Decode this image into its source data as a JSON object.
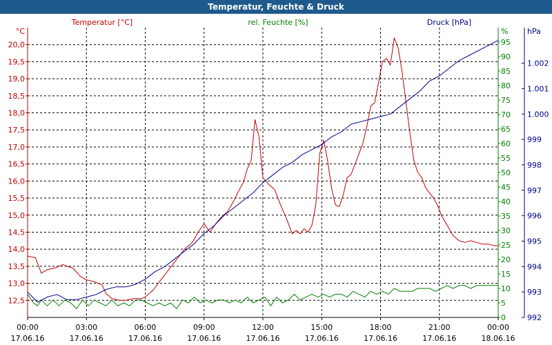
{
  "window": {
    "title": "Temperatur, Feuchte & Druck"
  },
  "colors": {
    "temperature": "#c00000",
    "humidity": "#008000",
    "pressure": "#00008b",
    "grid": "#000000",
    "background": "#ffffff",
    "title_bar": "#1e5a8c"
  },
  "chart_data": {
    "type": "line",
    "title": "Temperatur, Feuchte & Druck",
    "x_labels": [
      {
        "time": "00:00",
        "date": "17.06.16"
      },
      {
        "time": "03:00",
        "date": "17.06.16"
      },
      {
        "time": "06:00",
        "date": "17.06.16"
      },
      {
        "time": "09:00",
        "date": "17.06.16"
      },
      {
        "time": "12:00",
        "date": "17.06.16"
      },
      {
        "time": "15:00",
        "date": "17.06.16"
      },
      {
        "time": "18:00",
        "date": "17.06.16"
      },
      {
        "time": "21:00",
        "date": "17.06.16"
      },
      {
        "time": "00:00",
        "date": "18.06.16"
      }
    ],
    "xlim": [
      0,
      24
    ],
    "axes": {
      "temperature": {
        "label": "Temperatur [°C]",
        "unit": "°C",
        "ylim": [
          12.0,
          20.5
        ],
        "ticks": [
          "12,5",
          "13,0",
          "13,5",
          "14,0",
          "14,5",
          "15,0",
          "15,5",
          "16,0",
          "16,5",
          "17,0",
          "17,5",
          "18,0",
          "18,5",
          "19,0",
          "19,5",
          "20,0"
        ]
      },
      "humidity": {
        "label": "rel. Feuchte [%]",
        "unit": "%",
        "ylim": [
          0,
          100
        ],
        "ticks": [
          "0",
          "5",
          "10",
          "15",
          "20",
          "25",
          "30",
          "35",
          "40",
          "45",
          "50",
          "55",
          "60",
          "65",
          "70",
          "75",
          "80",
          "85",
          "90",
          "95"
        ]
      },
      "pressure": {
        "label": "Druck [hPa]",
        "unit": "hPa",
        "ylim": [
          992,
          1003.4
        ],
        "ticks": [
          "992",
          "993",
          "994",
          "995",
          "996",
          "997",
          "998",
          "999",
          "1.000",
          "1.001",
          "1.002"
        ]
      }
    },
    "series": [
      {
        "name": "Temperatur",
        "axis": "temperature",
        "color": "#c00000",
        "x": [
          0,
          0.4,
          0.7,
          1.0,
          1.4,
          1.8,
          2.0,
          2.3,
          2.7,
          3.0,
          3.4,
          3.8,
          4.0,
          4.3,
          4.7,
          5.0,
          5.4,
          5.8,
          6.0,
          6.4,
          6.8,
          7.2,
          7.6,
          8.0,
          8.4,
          8.7,
          9.0,
          9.3,
          9.6,
          9.9,
          10.2,
          10.5,
          10.8,
          11.0,
          11.2,
          11.4,
          11.6,
          11.8,
          12.0,
          12.3,
          12.6,
          12.9,
          13.2,
          13.5,
          13.7,
          13.9,
          14.1,
          14.3,
          14.5,
          14.7,
          14.9,
          15.1,
          15.3,
          15.5,
          15.7,
          15.9,
          16.1,
          16.3,
          16.5,
          16.7,
          16.9,
          17.1,
          17.3,
          17.5,
          17.7,
          17.9,
          18.1,
          18.3,
          18.5,
          18.7,
          18.9,
          19.1,
          19.3,
          19.5,
          19.7,
          19.9,
          20.1,
          20.3,
          20.5,
          20.7,
          20.9,
          21.1,
          21.3,
          21.5,
          21.7,
          22.0,
          22.3,
          22.6,
          22.9,
          23.2,
          23.5,
          23.8,
          24.0
        ],
        "values": [
          13.8,
          13.75,
          13.3,
          13.4,
          13.45,
          13.55,
          13.5,
          13.45,
          13.2,
          13.1,
          13.05,
          12.95,
          12.7,
          12.55,
          12.5,
          12.5,
          12.55,
          12.55,
          12.6,
          12.8,
          13.1,
          13.4,
          13.7,
          14.0,
          14.2,
          14.5,
          14.75,
          14.5,
          14.75,
          14.95,
          15.1,
          15.4,
          15.75,
          15.95,
          16.35,
          16.6,
          17.8,
          17.3,
          16.1,
          15.9,
          15.75,
          15.3,
          14.9,
          14.45,
          14.55,
          14.45,
          14.6,
          14.5,
          14.7,
          15.3,
          16.8,
          17.2,
          16.6,
          15.8,
          15.3,
          15.25,
          15.6,
          16.1,
          16.2,
          16.5,
          16.8,
          17.1,
          17.6,
          18.2,
          18.3,
          18.9,
          19.5,
          19.6,
          19.4,
          20.2,
          19.9,
          19.2,
          18.3,
          17.4,
          16.6,
          16.25,
          16.1,
          15.8,
          15.65,
          15.5,
          15.3,
          15.0,
          14.8,
          14.6,
          14.4,
          14.25,
          14.2,
          14.25,
          14.2,
          14.15,
          14.15,
          14.1,
          14.1
        ]
      },
      {
        "name": "rel. Feuchte",
        "axis": "humidity",
        "color": "#008000",
        "x": [
          0,
          0.3,
          0.5,
          0.7,
          1.0,
          1.3,
          1.6,
          1.9,
          2.2,
          2.5,
          2.8,
          3.1,
          3.4,
          3.7,
          4.0,
          4.3,
          4.6,
          4.9,
          5.2,
          5.5,
          5.8,
          6.1,
          6.4,
          6.7,
          7.0,
          7.3,
          7.6,
          7.9,
          8.2,
          8.5,
          8.8,
          9.1,
          9.4,
          9.7,
          10.0,
          10.3,
          10.6,
          10.9,
          11.2,
          11.5,
          11.8,
          12.1,
          12.4,
          12.7,
          13.0,
          13.3,
          13.6,
          13.9,
          14.2,
          14.5,
          14.8,
          15.1,
          15.4,
          15.7,
          16.0,
          16.3,
          16.6,
          16.9,
          17.2,
          17.5,
          17.8,
          18.1,
          18.4,
          18.7,
          19.0,
          19.3,
          19.6,
          19.9,
          20.2,
          20.5,
          20.8,
          21.1,
          21.4,
          21.7,
          22.0,
          22.3,
          22.6,
          22.9,
          23.2,
          23.5,
          23.8,
          24.0
        ],
        "values": [
          8,
          5,
          4,
          6,
          4,
          6,
          4,
          6,
          5,
          3,
          6,
          4,
          6,
          5,
          4,
          6,
          4,
          5,
          4,
          6,
          6,
          5,
          4,
          5,
          4,
          5,
          3,
          6,
          5,
          7,
          5,
          6,
          5,
          6,
          6,
          5,
          6,
          5,
          7,
          5,
          6,
          7,
          4,
          7,
          5,
          6,
          8,
          6,
          7,
          8,
          7,
          8,
          7,
          8,
          8,
          7,
          9,
          8,
          7,
          9,
          8,
          9,
          8,
          10,
          9,
          9,
          9,
          10,
          10,
          10,
          9,
          10,
          11,
          10,
          11,
          11,
          10,
          11,
          11,
          11,
          11,
          11
        ]
      },
      {
        "name": "Druck",
        "axis": "pressure",
        "color": "#00008b",
        "x": [
          0,
          0.5,
          1.0,
          1.5,
          2.0,
          2.5,
          3.0,
          3.5,
          4.0,
          4.5,
          5.0,
          5.5,
          6.0,
          6.5,
          7.0,
          7.5,
          8.0,
          8.5,
          9.0,
          9.5,
          10.0,
          10.5,
          11.0,
          11.5,
          12.0,
          12.5,
          13.0,
          13.5,
          14.0,
          14.5,
          15.0,
          15.5,
          16.0,
          16.5,
          17.0,
          17.5,
          18.0,
          18.5,
          19.0,
          19.5,
          20.0,
          20.5,
          21.0,
          21.5,
          22.0,
          22.5,
          23.0,
          23.5,
          24.0
        ],
        "values": [
          993.0,
          992.6,
          992.8,
          992.9,
          992.7,
          992.7,
          992.8,
          992.9,
          993.1,
          993.2,
          993.2,
          993.3,
          993.5,
          993.8,
          994.0,
          994.3,
          994.6,
          994.9,
          995.3,
          995.6,
          996.0,
          996.3,
          996.6,
          996.9,
          997.3,
          997.6,
          997.9,
          998.1,
          998.4,
          998.6,
          998.8,
          999.1,
          999.3,
          999.6,
          999.7,
          999.8,
          999.9,
          1000.0,
          1000.3,
          1000.6,
          1000.9,
          1001.3,
          1001.5,
          1001.8,
          1002.1,
          1002.3,
          1002.5,
          1002.7,
          1002.9
        ]
      }
    ]
  }
}
